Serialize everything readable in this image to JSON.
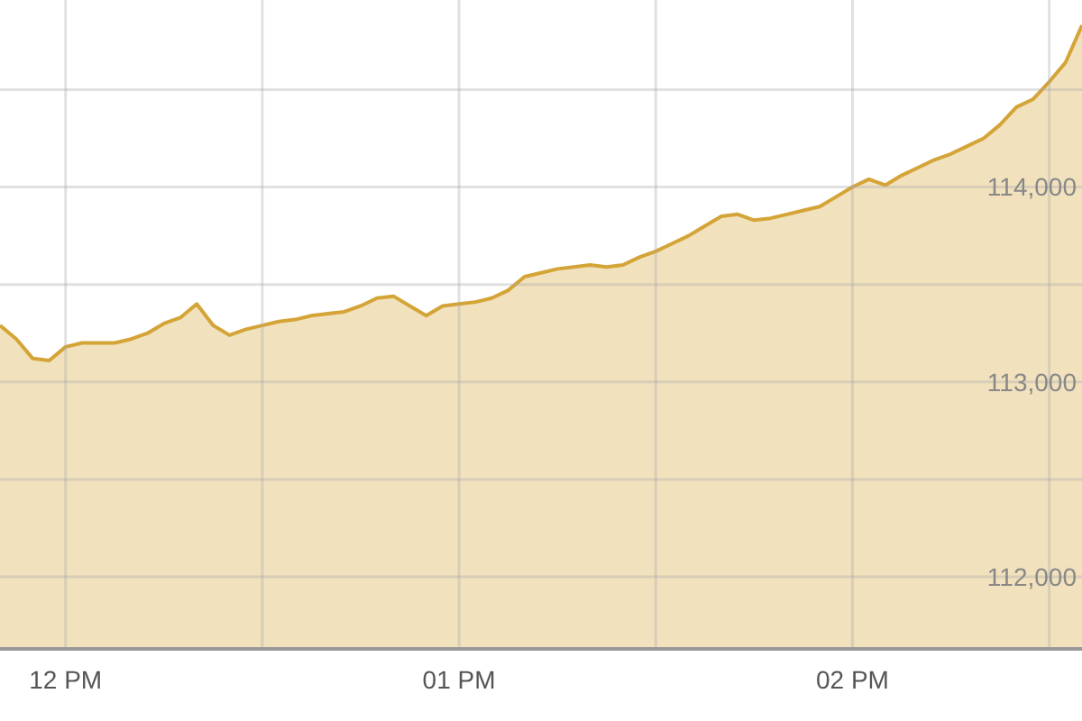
{
  "chart_data": {
    "type": "area",
    "grid": true,
    "ylim": [
      111630,
      114960
    ],
    "yticks": [
      {
        "value": 112000,
        "label": "112,000"
      },
      {
        "value": 112500,
        "label": null
      },
      {
        "value": 113000,
        "label": "113,000"
      },
      {
        "value": 113500,
        "label": null
      },
      {
        "value": 114000,
        "label": "114,000"
      },
      {
        "value": 114500,
        "label": null
      }
    ],
    "categories": [
      null,
      null,
      null,
      null,
      "12 PM",
      null,
      null,
      null,
      null,
      null,
      null,
      null,
      null,
      null,
      null,
      null,
      null,
      null,
      null,
      null,
      null,
      null,
      null,
      null,
      null,
      null,
      null,
      null,
      "01 PM",
      null,
      null,
      null,
      null,
      null,
      null,
      null,
      null,
      null,
      null,
      null,
      null,
      null,
      null,
      null,
      null,
      null,
      null,
      null,
      null,
      null,
      null,
      null,
      "02 PM",
      null,
      null,
      null,
      null,
      null,
      null,
      null,
      null,
      null,
      null,
      null,
      null,
      null,
      null
    ],
    "series": [
      {
        "color": "#d4a437",
        "values": [
          113290,
          113220,
          113120,
          113110,
          113180,
          113200,
          113200,
          113200,
          113220,
          113250,
          113300,
          113330,
          113400,
          113290,
          113240,
          113270,
          113290,
          113310,
          113320,
          113340,
          113350,
          113360,
          113390,
          113430,
          113440,
          113390,
          113340,
          113390,
          113400,
          113410,
          113430,
          113470,
          113540,
          113560,
          113580,
          113590,
          113600,
          113590,
          113600,
          113640,
          113670,
          113710,
          113750,
          113800,
          113850,
          113860,
          113830,
          113840,
          113860,
          113880,
          113900,
          113950,
          114000,
          114040,
          114010,
          114060,
          114100,
          114140,
          114170,
          114210,
          114250,
          114320,
          114410,
          114450,
          114540,
          114640,
          114830
        ]
      }
    ]
  }
}
